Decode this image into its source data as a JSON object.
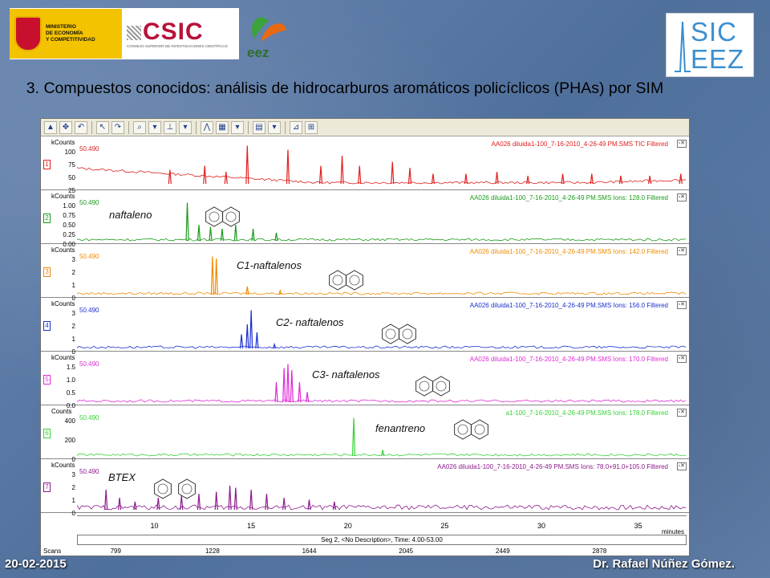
{
  "logos": {
    "ministerio": "MINISTERIO\nDE ECONOMÍA\nY COMPETITIVIDAD",
    "csic": "CSIC",
    "csic_sub": "CONSEJO SUPERIOR DE INVESTIGACIONES CIENTÍFICAS",
    "eez": "eez",
    "sic": "SIC",
    "eez_big": "EEZ"
  },
  "title": "3. Compuestos conocidos: análisis de hidrocarburos aromáticos policíclicos (PHAs) por SIM",
  "panels": [
    {
      "num": "1",
      "unit": "kCounts",
      "value": "50.490",
      "label": "AA026 diluida1-100_7-16-2010_4-26-49 PM.SMS TIC Filtered",
      "color": "#e0201f",
      "ticks": [
        "100",
        "75",
        "50",
        "25"
      ],
      "compound": ""
    },
    {
      "num": "2",
      "unit": "kCounts",
      "value": "50.490",
      "label": "AA026 diluida1-100_7-16-2010_4-26-49 PM.SMS Ions: 128.0 Filtered",
      "color": "#1a9a1a",
      "ticks": [
        "1.00",
        "0.75",
        "0.50",
        "0.25",
        "0.00"
      ],
      "compound": "naftaleno"
    },
    {
      "num": "3",
      "unit": "kCounts",
      "value": "50.490",
      "label": "AA026 diluida1-100_7-16-2010_4-26-49 PM.SMS Ions: 142.0 Filtered",
      "color": "#f28a00",
      "ticks": [
        "3",
        "2",
        "1",
        "0"
      ],
      "compound": "C1-naftalenos"
    },
    {
      "num": "4",
      "unit": "kCounts",
      "value": "50.490",
      "label": "AA026 diluida1-100_7-16-2010_4-26-49 PM.SMS Ions: 156.0 Filtered",
      "color": "#1a2fd0",
      "ticks": [
        "3",
        "2",
        "1",
        "0"
      ],
      "compound": "C2- naftalenos"
    },
    {
      "num": "5",
      "unit": "kCounts",
      "value": "50.490",
      "label": "AA026 diluida1-100_7-16-2010_4-26-49 PM.SMS Ions: 170.0 Filtered",
      "color": "#e02ad8",
      "ticks": [
        "1.5",
        "1.0",
        "0.5",
        "0.0"
      ],
      "compound": "C3- naftalenos"
    },
    {
      "num": "6",
      "unit": "Counts",
      "value": "50.490",
      "label": "a1-100_7-16-2010_4-26-49 PM.SMS Ions: 178.0 Filtered",
      "color": "#35d335",
      "ticks": [
        "400",
        "200",
        "0"
      ],
      "compound": "fenantreno"
    },
    {
      "num": "7",
      "unit": "kCounts",
      "value": "50.490",
      "label": "AA026 diluida1-100_7-16-2010_4-26-49 PM.SMS Ions: 78.0+91.0+105.0 Filtered",
      "color": "#8b1a8b",
      "ticks": [
        "3",
        "2",
        "1",
        "0"
      ],
      "compound": "BTEX"
    }
  ],
  "x_ticks": [
    "10",
    "15",
    "20",
    "25",
    "30",
    "35"
  ],
  "x_unit": "minutes",
  "segment": "Seg 2, <No Description>, Time: 4.00-53.00",
  "scans_label": "Scans",
  "scans": [
    "799",
    "1228",
    "1644",
    "2045",
    "2449",
    "2878"
  ],
  "footer": {
    "date": "20-02-2015",
    "author": "Dr. Rafael Núñez Gómez."
  }
}
